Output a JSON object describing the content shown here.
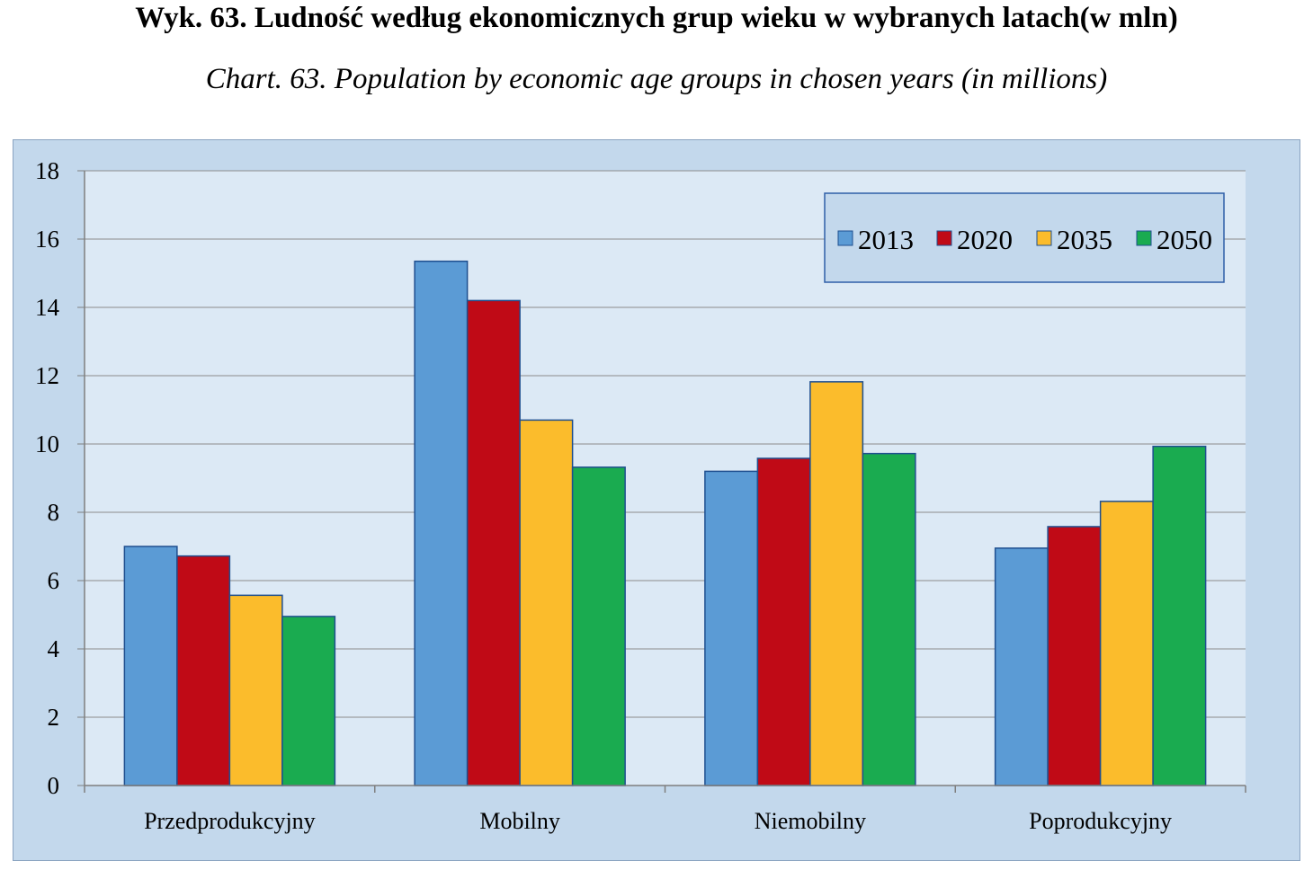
{
  "header": {
    "title": "Wyk.  63. Ludność według ekonomicznych grup wieku w wybranych latach(w mln)",
    "subtitle": "Chart. 63. Population by economic age groups in chosen years (in millions)"
  },
  "chart_data": {
    "type": "bar",
    "categories": [
      "Przedprodukcyjny",
      "Mobilny",
      "Niemobilny",
      "Poprodukcyjny"
    ],
    "series": [
      {
        "name": "2013",
        "color": "#5b9bd5",
        "values": [
          7.0,
          15.35,
          9.2,
          6.95
        ]
      },
      {
        "name": "2020",
        "color": "#c00a16",
        "values": [
          6.72,
          14.2,
          9.58,
          7.58
        ]
      },
      {
        "name": "2035",
        "color": "#fbbc2c",
        "values": [
          5.57,
          10.7,
          11.82,
          8.32
        ]
      },
      {
        "name": "2050",
        "color": "#1aab50",
        "values": [
          4.95,
          9.32,
          9.72,
          9.93
        ]
      }
    ],
    "ylim": [
      0,
      18
    ],
    "yticks": [
      0,
      2,
      4,
      6,
      8,
      10,
      12,
      14,
      16,
      18
    ],
    "grid": true,
    "legend_position": "top-right",
    "xlabel": "",
    "ylabel": ""
  }
}
